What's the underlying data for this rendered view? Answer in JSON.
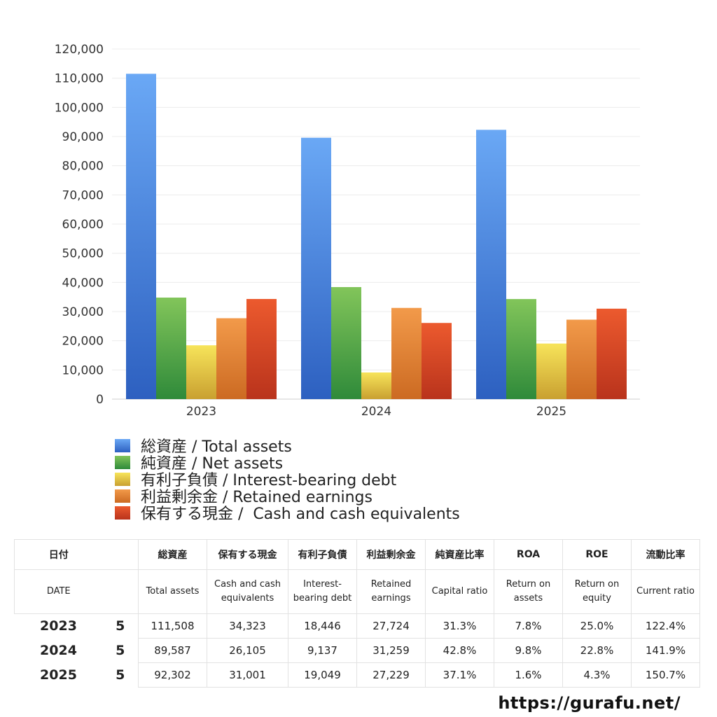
{
  "chart_data": {
    "type": "bar",
    "categories": [
      "2023",
      "2024",
      "2025"
    ],
    "ylim": [
      0,
      120000
    ],
    "yticks": [
      "0",
      "10,000",
      "20,000",
      "30,000",
      "40,000",
      "50,000",
      "60,000",
      "70,000",
      "80,000",
      "90,000",
      "100,000",
      "110,000",
      "120,000"
    ],
    "legend_position": "bottom",
    "grid": true,
    "series": [
      {
        "name": "総資産 / Total assets",
        "values": [
          111508,
          89587,
          92302
        ],
        "color_top": "#6aa8f5",
        "color_bottom": "#2d60c0"
      },
      {
        "name": "純資産 / Net assets",
        "values": [
          34800,
          38400,
          34300
        ],
        "color_top": "#82c55a",
        "color_bottom": "#2f8a3a"
      },
      {
        "name": "有利子負債 / Interest-bearing debt",
        "values": [
          18446,
          9137,
          19049
        ],
        "color_top": "#f7e45a",
        "color_bottom": "#c9a030"
      },
      {
        "name": "利益剰余金 / Retained earnings",
        "values": [
          27724,
          31259,
          27229
        ],
        "color_top": "#f29a4a",
        "color_bottom": "#cc6a22"
      },
      {
        "name": "保有する現金 /  Cash and cash equivalents",
        "values": [
          34323,
          26105,
          31001
        ],
        "color_top": "#ec5a2e",
        "color_bottom": "#b9331c"
      }
    ]
  },
  "table": {
    "header_jp": [
      "日付",
      "",
      "総資産",
      "保有する現金",
      "有利子負債",
      "利益剰余金",
      "純資産比率",
      "ROA",
      "ROE",
      "流動比率"
    ],
    "header_en": [
      "DATE",
      "",
      "Total assets",
      "Cash and cash equivalents",
      "Interest-bearing debt",
      "Retained earnings",
      "Capital ratio",
      "Return on assets",
      "Return on equity",
      "Current ratio"
    ],
    "rows": [
      [
        "2023",
        "5",
        "111,508",
        "34,323",
        "18,446",
        "27,724",
        "31.3%",
        "7.8%",
        "25.0%",
        "122.4%"
      ],
      [
        "2024",
        "5",
        "89,587",
        "26,105",
        "9,137",
        "31,259",
        "42.8%",
        "9.8%",
        "22.8%",
        "141.9%"
      ],
      [
        "2025",
        "5",
        "92,302",
        "31,001",
        "19,049",
        "27,229",
        "37.1%",
        "1.6%",
        "4.3%",
        "150.7%"
      ]
    ]
  },
  "footer": {
    "url": "https://gurafu.net/"
  }
}
